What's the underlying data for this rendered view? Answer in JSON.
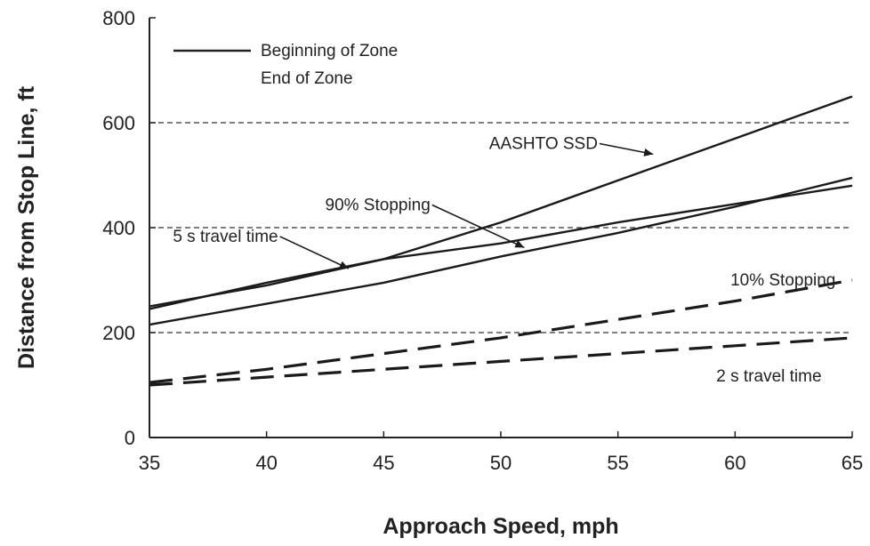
{
  "chart_data": {
    "type": "line",
    "xlabel": "Approach Speed, mph",
    "ylabel": "Distance from Stop Line, ft",
    "xlim": [
      35,
      65
    ],
    "ylim": [
      0,
      800
    ],
    "xticks": [
      "35",
      "40",
      "45",
      "50",
      "55",
      "60",
      "65"
    ],
    "yticks": [
      "0",
      "200",
      "400",
      "600",
      "800"
    ],
    "grid": "dashed horizontal lines at 200, 400, 600",
    "legend": {
      "placement": "top-left",
      "entries": [
        "Beginning of Zone",
        "End of Zone"
      ]
    },
    "series": [
      {
        "x": [
          35,
          40,
          45,
          50,
          55,
          60,
          65
        ],
        "y": [
          250,
          290,
          340,
          410,
          490,
          570,
          650
        ]
      },
      {
        "x": [
          35,
          40,
          45,
          50,
          55,
          60,
          65
        ],
        "y": [
          245,
          295,
          340,
          370,
          410,
          445,
          480
        ]
      },
      {
        "x": [
          35,
          40,
          45,
          50,
          55,
          60,
          65
        ],
        "y": [
          215,
          255,
          295,
          345,
          390,
          440,
          495
        ]
      },
      {
        "x": [
          35,
          40,
          45,
          50,
          55,
          60,
          65
        ],
        "y": [
          105,
          130,
          160,
          190,
          225,
          260,
          300
        ]
      },
      {
        "x": [
          35,
          40,
          45,
          50,
          55,
          60,
          65
        ],
        "y": [
          100,
          115,
          130,
          145,
          160,
          175,
          190
        ]
      }
    ],
    "annotations": [
      {
        "text": "AASHTO SSD",
        "x": 49.5,
        "y": 550,
        "arrow_to": [
          56.5,
          540
        ]
      },
      {
        "text": "90% Stopping",
        "x": 42.5,
        "y": 433,
        "arrow_to": [
          51,
          362
        ]
      },
      {
        "text": "5 s travel time",
        "x": 36.0,
        "y": 373,
        "arrow_to": [
          43.5,
          322
        ]
      },
      {
        "text": "10% Stopping",
        "x": 59.8,
        "y": 290
      },
      {
        "text": "2 s travel time",
        "x": 59.2,
        "y": 107
      }
    ]
  }
}
